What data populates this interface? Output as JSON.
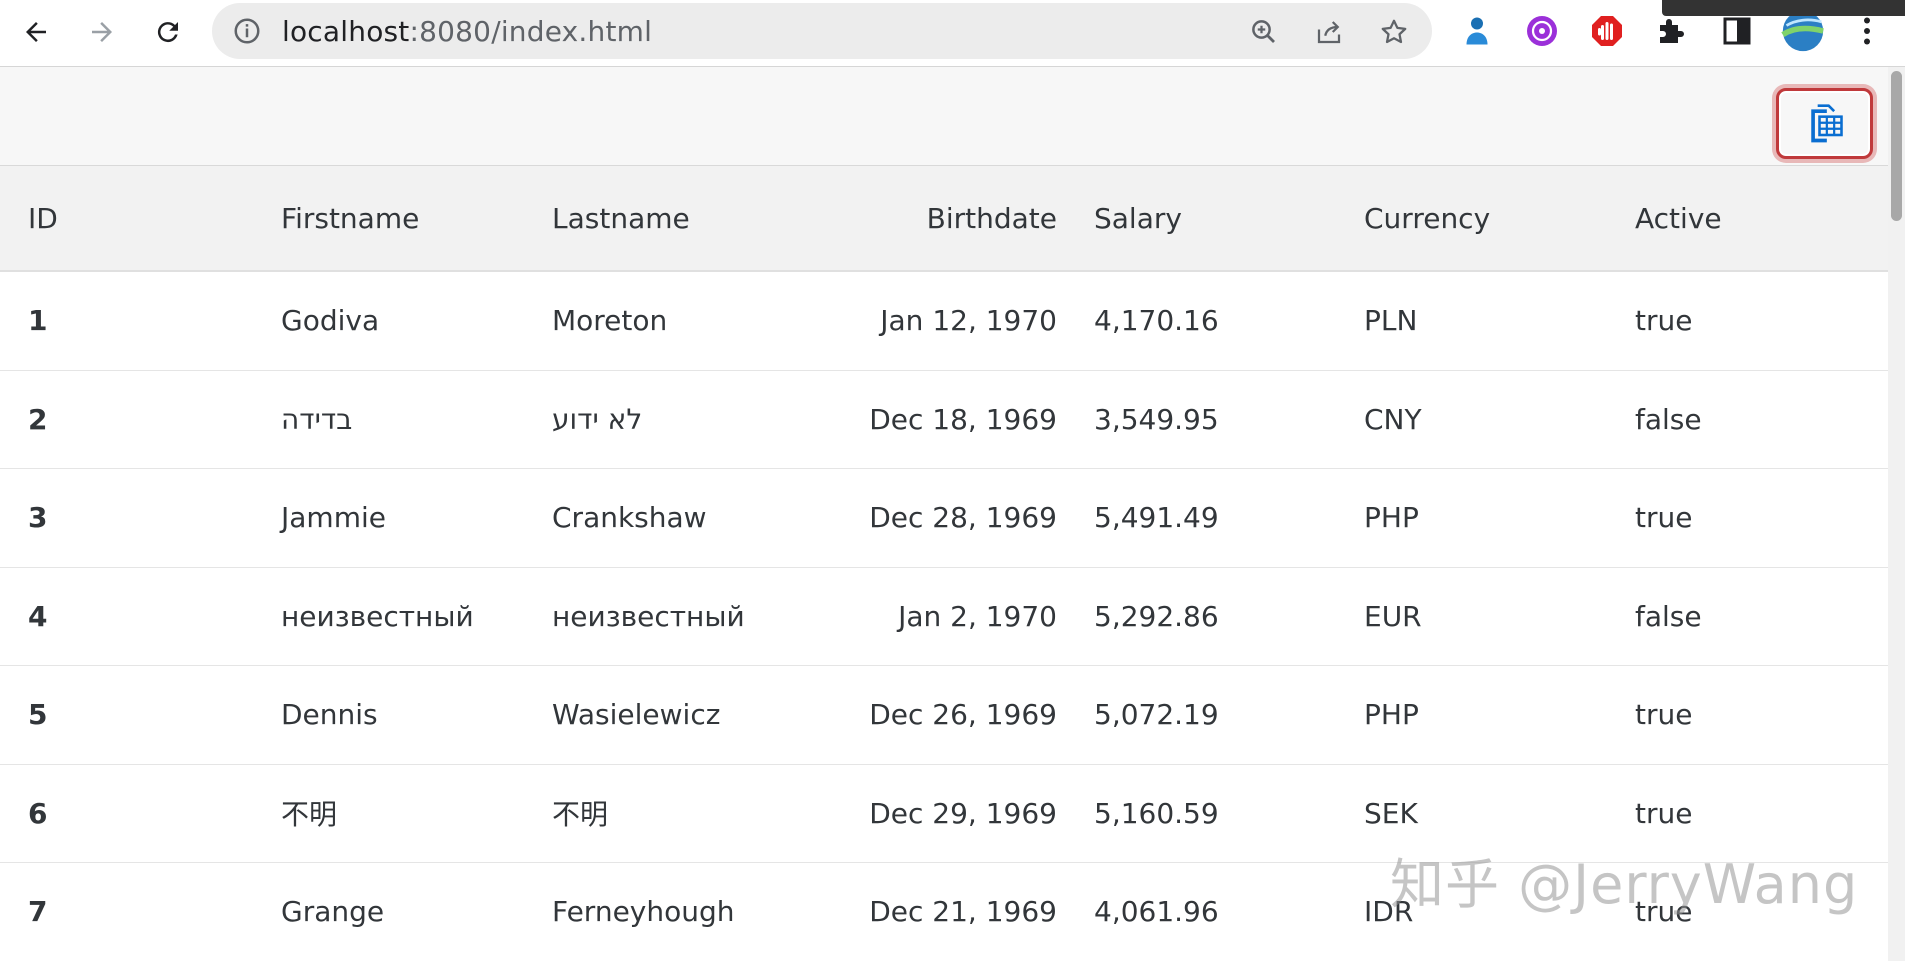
{
  "browser": {
    "url_host": "localhost",
    "url_rest": ":8080/index.html",
    "icons": [
      "back-arrow-icon",
      "forward-arrow-icon",
      "reload-icon",
      "site-info-icon",
      "zoom-icon",
      "share-icon",
      "bookmark-star-icon",
      "extension-person-icon",
      "extension-purple-icon",
      "adblock-hand-icon",
      "puzzle-extensions-icon",
      "side-panel-icon",
      "profile-avatar-icon",
      "more-menu-icon"
    ]
  },
  "toolbar": {
    "export_icon": "export-spreadsheet-icon",
    "accent": "#0a6ed1",
    "highlight": "#c0393b"
  },
  "table": {
    "headers": [
      "ID",
      "Firstname",
      "Lastname",
      "Birthdate",
      "Salary",
      "Currency",
      "Active"
    ],
    "rows": [
      [
        "1",
        "Godiva",
        "Moreton",
        "Jan 12, 1970",
        "4,170.16",
        "PLN",
        "true"
      ],
      [
        "2",
        "בדידה",
        "לא ידוע",
        "Dec 18, 1969",
        "3,549.95",
        "CNY",
        "false"
      ],
      [
        "3",
        "Jammie",
        "Crankshaw",
        "Dec 28, 1969",
        "5,491.49",
        "PHP",
        "true"
      ],
      [
        "4",
        "неизвестный",
        "неизвестный",
        "Jan 2, 1970",
        "5,292.86",
        "EUR",
        "false"
      ],
      [
        "5",
        "Dennis",
        "Wasielewicz",
        "Dec 26, 1969",
        "5,072.19",
        "PHP",
        "true"
      ],
      [
        "6",
        "不明",
        "不明",
        "Dec 29, 1969",
        "5,160.59",
        "SEK",
        "true"
      ],
      [
        "7",
        "Grange",
        "Ferneyhough",
        "Dec 21, 1969",
        "4,061.96",
        "IDR",
        "true"
      ]
    ]
  },
  "watermark": "知乎 @JerryWang"
}
